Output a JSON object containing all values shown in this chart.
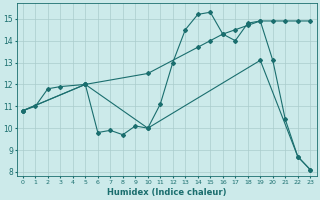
{
  "xlabel": "Humidex (Indice chaleur)",
  "bg_color": "#cceaea",
  "line_color": "#1a6e6e",
  "grid_color": "#aacccc",
  "xlim": [
    -0.5,
    23.5
  ],
  "ylim": [
    7.8,
    15.7
  ],
  "yticks": [
    8,
    9,
    10,
    11,
    12,
    13,
    14,
    15
  ],
  "xticks": [
    0,
    1,
    2,
    3,
    4,
    5,
    6,
    7,
    8,
    9,
    10,
    11,
    12,
    13,
    14,
    15,
    16,
    17,
    18,
    19,
    20,
    21,
    22,
    23
  ],
  "line1_x": [
    0,
    1,
    2,
    3,
    5,
    6,
    7,
    8,
    9,
    10,
    11,
    12,
    13,
    14,
    15,
    16,
    17,
    18,
    19,
    20,
    21,
    22,
    23
  ],
  "line1_y": [
    10.8,
    11.0,
    11.8,
    11.9,
    12.0,
    9.8,
    9.9,
    9.7,
    10.1,
    10.0,
    11.1,
    13.0,
    14.5,
    15.2,
    15.3,
    14.3,
    14.0,
    14.8,
    14.9,
    13.1,
    10.4,
    8.7,
    8.1
  ],
  "line2_x": [
    0,
    5,
    10,
    14,
    15,
    16,
    17,
    18,
    19,
    20,
    21,
    22,
    23
  ],
  "line2_y": [
    10.8,
    12.0,
    12.5,
    13.7,
    14.0,
    14.3,
    14.5,
    14.7,
    14.9,
    14.9,
    14.9,
    14.9,
    14.9
  ],
  "line3_x": [
    0,
    5,
    10,
    19,
    22,
    23
  ],
  "line3_y": [
    10.8,
    12.0,
    10.0,
    13.1,
    8.7,
    8.1
  ]
}
